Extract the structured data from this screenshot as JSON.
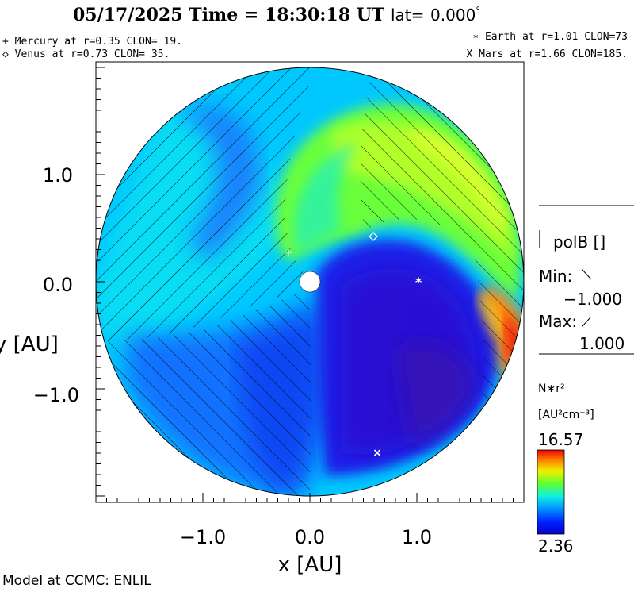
{
  "header": {
    "date": "05/17/2025",
    "time_text": "Time = 18:30:18 UT",
    "lat_label": "lat=",
    "lat_value": "0.000",
    "lat_degree": "°"
  },
  "planets": {
    "mercury": "+ Mercury at r=0.35 CLON= 19.",
    "venus": "◇ Venus at r=0.73 CLON= 35.",
    "earth": "∗ Earth at  r=1.01 CLON=73",
    "mars": "X Mars at r=1.66 CLON=185."
  },
  "side_panel": {
    "polb_label": "polB []",
    "min_label": "Min:",
    "min_value": "−1.000",
    "max_label": "Max:",
    "max_value": "1.000",
    "quantity": "N∗r²",
    "units": "[AU²cm⁻³]",
    "cbar_max": "16.57",
    "cbar_min": "2.36"
  },
  "footer": {
    "credit": "Model at CCMC: ENLIL"
  },
  "chart_data": {
    "type": "heatmap",
    "title": "05/17/2025 Time = 18:30:18 UT lat= 0.000°",
    "xlabel": "x [AU]",
    "ylabel": "y [AU]",
    "xlim": [
      -2.0,
      2.0
    ],
    "ylim": [
      -2.0,
      2.0
    ],
    "x_ticks": [
      "−1.0",
      "0.0",
      "1.0"
    ],
    "y_ticks": [
      "1.0",
      "0.0",
      "−1.0"
    ],
    "domain_radius_au": 2.0,
    "colorbar": {
      "quantity": "N∗r²",
      "min": 2.36,
      "max": 16.57,
      "colormap": "jet"
    },
    "polarity": {
      "min": -1.0,
      "max": 1.0,
      "hatched_sign": "negative"
    },
    "markers": [
      {
        "body": "Sun",
        "x": 0.0,
        "y": 0.0,
        "symbol": "filled circle"
      },
      {
        "body": "Mercury",
        "r": 0.35,
        "clon": 19,
        "x": -0.2,
        "y": 0.27,
        "symbol": "+"
      },
      {
        "body": "Venus",
        "r": 0.73,
        "clon": 35,
        "x": 0.59,
        "y": 0.43,
        "symbol": "diamond"
      },
      {
        "body": "Earth",
        "r": 1.01,
        "clon": 73,
        "x": 1.0,
        "y": 0.0,
        "symbol": "*"
      },
      {
        "body": "Mars",
        "r": 1.66,
        "clon": 185,
        "x": 0.62,
        "y": -1.55,
        "symbol": "X"
      }
    ]
  }
}
